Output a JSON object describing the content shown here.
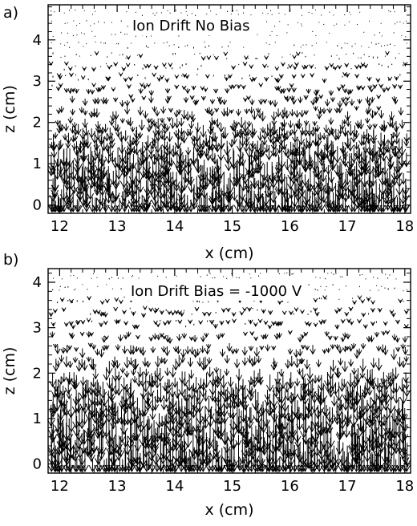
{
  "chart_data": [
    {
      "type": "vector-field",
      "panel_label": "a)",
      "title": "Ion Drift No Bias",
      "xlabel": "x (cm)",
      "ylabel": "z (cm)",
      "xlim": [
        11.8,
        18.1
      ],
      "ylim": [
        -0.2,
        4.85
      ],
      "xticks": [
        "12",
        "13",
        "14",
        "15",
        "16",
        "17",
        "18"
      ],
      "yticks": [
        "0",
        "1",
        "2",
        "3",
        "4"
      ],
      "grid": false,
      "arrow_direction": "down",
      "arrow_length_by_height": [
        {
          "z": 0.2,
          "length_cm": 0.55
        },
        {
          "z": 1.0,
          "length_cm": 0.45
        },
        {
          "z": 2.0,
          "length_cm": 0.22
        },
        {
          "z": 3.0,
          "length_cm": 0.07
        },
        {
          "z": 4.0,
          "length_cm": 0.02
        }
      ]
    },
    {
      "type": "vector-field",
      "panel_label": "b)",
      "title": "Ion Drift Bias = -1000 V",
      "xlabel": "x (cm)",
      "ylabel": "z (cm)",
      "xlim": [
        11.8,
        18.1
      ],
      "ylim": [
        -0.2,
        4.3
      ],
      "xticks": [
        "12",
        "13",
        "14",
        "15",
        "16",
        "17",
        "18"
      ],
      "yticks": [
        "0",
        "1",
        "2",
        "3",
        "4"
      ],
      "grid": false,
      "arrow_direction": "down",
      "arrow_length_by_height": [
        {
          "z": 0.2,
          "length_cm": 0.55
        },
        {
          "z": 1.0,
          "length_cm": 0.5
        },
        {
          "z": 2.0,
          "length_cm": 0.28
        },
        {
          "z": 3.0,
          "length_cm": 0.08
        },
        {
          "z": 4.0,
          "length_cm": 0.02
        }
      ]
    }
  ]
}
